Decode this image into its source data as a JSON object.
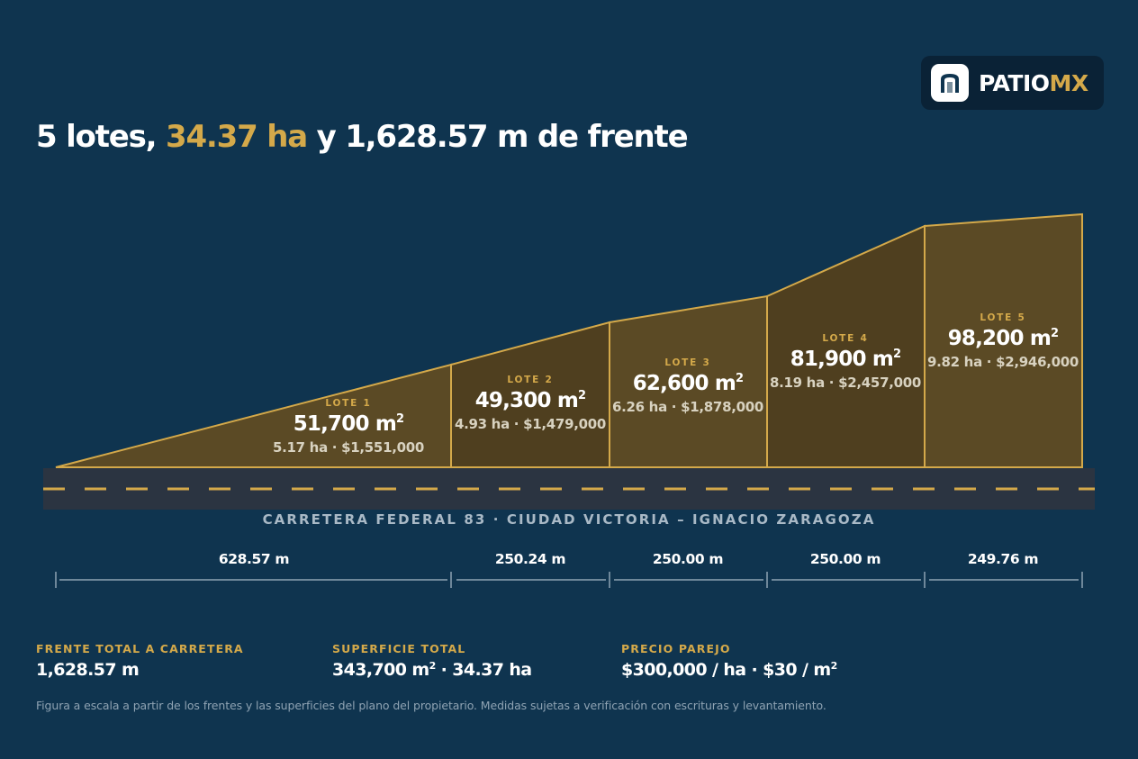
{
  "brand": {
    "name_main": "PATIO",
    "name_accent": "MX",
    "accent_color": "#d4a94a"
  },
  "headline": {
    "part1": "5 lotes, ",
    "highlight": "34.37 ha",
    "part2": " y 1,628.57 m de frente"
  },
  "lots": [
    {
      "label": "LOTE 1",
      "area": "51,700 m",
      "detail": "5.17 ha · $1,551,000",
      "frontage_m": 628.57,
      "area_m2": 51700
    },
    {
      "label": "LOTE 2",
      "area": "49,300 m",
      "detail": "4.93 ha · $1,479,000",
      "frontage_m": 250.24,
      "area_m2": 49300
    },
    {
      "label": "LOTE 3",
      "area": "62,600 m",
      "detail": "6.26 ha · $1,878,000",
      "frontage_m": 250.0,
      "area_m2": 62600
    },
    {
      "label": "LOTE 4",
      "area": "81,900 m",
      "detail": "8.19 ha · $2,457,000",
      "frontage_m": 250.0,
      "area_m2": 81900
    },
    {
      "label": "LOTE 5",
      "area": "98,200 m",
      "detail": "9.82 ha · $2,946,000",
      "frontage_m": 249.76,
      "area_m2": 98200
    }
  ],
  "frontages": [
    "628.57 m",
    "250.24 m",
    "250.00 m",
    "250.00 m",
    "249.76 m"
  ],
  "road_label": "CARRETERA FEDERAL 83 · CIUDAD VICTORIA – IGNACIO ZARAGOZA",
  "stats": [
    {
      "label": "FRENTE TOTAL A CARRETERA",
      "value": "1,628.57 m",
      "sup": "",
      "value_after": ""
    },
    {
      "label": "SUPERFICIE TOTAL",
      "value": "343,700 m",
      "sup": "2",
      "value_after": " · 34.37 ha"
    },
    {
      "label": "PRECIO PAREJO",
      "value": "$300,000 / ha · $30 / m",
      "sup": "2",
      "value_after": ""
    }
  ],
  "footnote": "Figura a escala a partir de los frentes y las superficies del plano del propietario. Medidas sujetas a verificación con escrituras y levantamiento.",
  "colors": {
    "background": "#0f344f",
    "gold": "#d4a94a",
    "lot_fill_light": "#5b4a25",
    "lot_fill_dark": "#4f3f1f",
    "road": "#2b3441",
    "muted_text": "#a9b9c6"
  }
}
